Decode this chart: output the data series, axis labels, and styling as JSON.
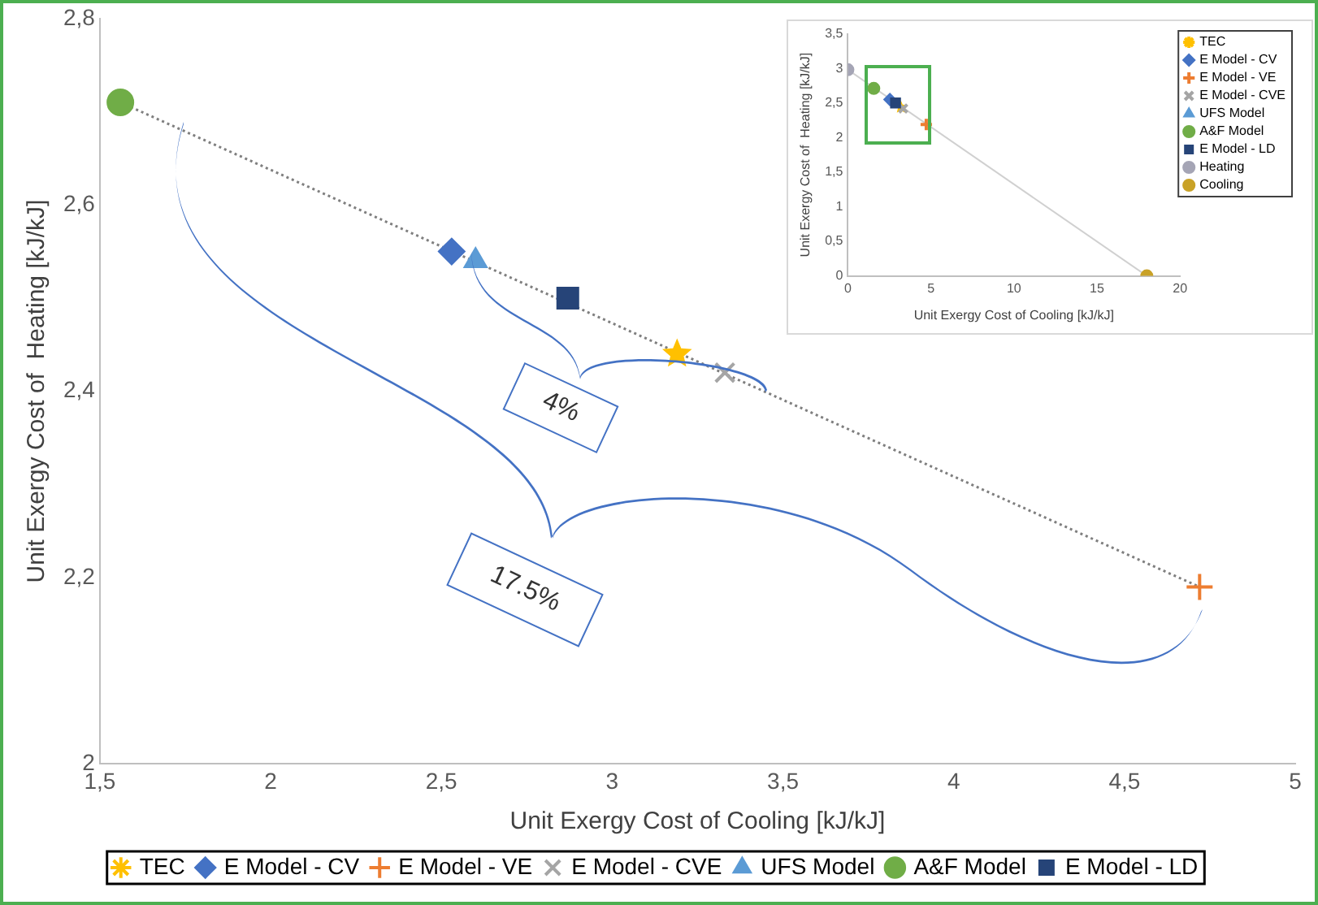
{
  "chart_data": [
    {
      "type": "scatter",
      "xlabel": "Unit Exergy Cost of Cooling [kJ/kJ]",
      "ylabel": "Unit Exergy Cost of  Heating [kJ/kJ]",
      "xlim": [
        1.5,
        5
      ],
      "xticks": [
        {
          "value": 1.5,
          "label": "1,5"
        },
        2,
        {
          "value": 2.5,
          "label": "2,5"
        },
        3,
        {
          "value": 3.5,
          "label": "3,5"
        },
        4,
        {
          "value": 4.5,
          "label": "4,5"
        },
        5
      ],
      "ylim": [
        2,
        2.8
      ],
      "yticks": [
        2,
        {
          "value": 2.2,
          "label": "2,2"
        },
        {
          "value": 2.4,
          "label": "2,4"
        },
        {
          "value": 2.6,
          "label": "2,6"
        },
        {
          "value": 2.8,
          "label": "2,8"
        }
      ],
      "grid": false,
      "legend": "bottom",
      "annotations": [
        "4%",
        "17.5%"
      ],
      "series": [
        {
          "type": "line",
          "x": [
            1.56,
            4.72
          ],
          "values": [
            2.71,
            2.19
          ],
          "color": "#7f7f7f",
          "line_style": "dotted",
          "marker": "none"
        },
        {
          "name": "TEC",
          "x": [
            3.19
          ],
          "values": [
            2.44
          ],
          "color": "#ffc000",
          "marker": "star"
        },
        {
          "name": "E Model - CV",
          "x": [
            2.53
          ],
          "values": [
            2.55
          ],
          "color": "#4472c4",
          "marker": "diamond"
        },
        {
          "name": "E Model - VE",
          "x": [
            4.72
          ],
          "values": [
            2.19
          ],
          "color": "#ed7d31",
          "marker": "cross"
        },
        {
          "name": "E Model - CVE",
          "x": [
            3.33
          ],
          "values": [
            2.42
          ],
          "color": "#a5a5a5",
          "marker": "x"
        },
        {
          "name": "UFS Model",
          "x": [
            2.6
          ],
          "values": [
            2.54
          ],
          "color": "#5b9bd5",
          "marker": "triangle"
        },
        {
          "name": "A&F Model",
          "x": [
            1.56
          ],
          "values": [
            2.71
          ],
          "color": "#70ad47",
          "marker": "circle"
        },
        {
          "name": "E Model - LD",
          "x": [
            2.87
          ],
          "values": [
            2.5
          ],
          "color": "#264478",
          "marker": "square"
        }
      ]
    },
    {
      "type": "scatter",
      "xlabel": "Unit Exergy Cost of Cooling [kJ/kJ]",
      "ylabel": "Unit Exergy Cost of  Heating [kJ/kJ]",
      "xlim": [
        0,
        20
      ],
      "xticks": [
        0,
        5,
        10,
        15,
        20
      ],
      "ylim": [
        0,
        3.5
      ],
      "yticks": [
        0,
        {
          "value": 0.5,
          "label": "0,5"
        },
        1,
        {
          "value": 1.5,
          "label": "1,5"
        },
        2,
        {
          "value": 2.5,
          "label": "2,5"
        },
        3,
        {
          "value": 3.5,
          "label": "3,5"
        }
      ],
      "grid": false,
      "legend": "right",
      "series": [
        {
          "type": "line",
          "x": [
            0,
            18
          ],
          "values": [
            2.98,
            0
          ],
          "color": "#d0d0d0",
          "line_style": "solid",
          "marker": "none"
        },
        {
          "name": "TEC",
          "x": [
            3.19
          ],
          "values": [
            2.44
          ],
          "color": "#ffc000",
          "marker": "star"
        },
        {
          "name": "E Model - CV",
          "x": [
            2.53
          ],
          "values": [
            2.55
          ],
          "color": "#4472c4",
          "marker": "diamond"
        },
        {
          "name": "E Model - VE",
          "x": [
            4.72
          ],
          "values": [
            2.19
          ],
          "color": "#ed7d31",
          "marker": "cross"
        },
        {
          "name": "E Model - CVE",
          "x": [
            3.33
          ],
          "values": [
            2.42
          ],
          "color": "#a5a5a5",
          "marker": "x"
        },
        {
          "name": "UFS Model",
          "x": [
            null
          ],
          "values": [
            null
          ],
          "color": "#5b9bd5",
          "marker": "triangle"
        },
        {
          "name": "A&F Model",
          "x": [
            1.56
          ],
          "values": [
            2.71
          ],
          "color": "#70ad47",
          "marker": "circle"
        },
        {
          "name": "E Model - LD",
          "x": [
            2.87
          ],
          "values": [
            2.5
          ],
          "color": "#264478",
          "marker": "square"
        },
        {
          "name": "Heating",
          "x": [
            0
          ],
          "values": [
            2.98
          ],
          "color": "#a5a5b5",
          "marker": "circle"
        },
        {
          "name": "Cooling",
          "x": [
            18
          ],
          "values": [
            0
          ],
          "color": "#c9a227",
          "marker": "circle"
        }
      ]
    }
  ]
}
